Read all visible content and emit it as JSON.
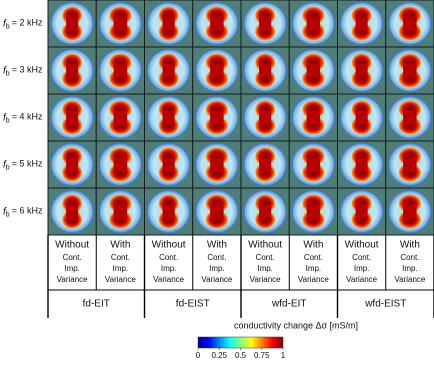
{
  "rows": [
    {
      "symbol": "f",
      "subscript": "b",
      "text": "= 2 kHz"
    },
    {
      "symbol": "f",
      "subscript": "b",
      "text": "= 3 kHz"
    },
    {
      "symbol": "f",
      "subscript": "b",
      "text": "= 4 kHz"
    },
    {
      "symbol": "f",
      "subscript": "b",
      "text": "= 5 kHz"
    },
    {
      "symbol": "f",
      "subscript": "b",
      "text": "= 6 kHz"
    }
  ],
  "columns": [
    {
      "main": "Without",
      "lines": [
        "Cont.",
        "Imp.",
        "Variance"
      ]
    },
    {
      "main": "With",
      "lines": [
        "Cont.",
        "Imp.",
        "Variance"
      ]
    },
    {
      "main": "Without",
      "lines": [
        "Cont.",
        "Imp.",
        "Variance"
      ]
    },
    {
      "main": "With",
      "lines": [
        "Cont.",
        "Imp.",
        "Variance"
      ]
    },
    {
      "main": "Without",
      "lines": [
        "Cont.",
        "Imp.",
        "Variance"
      ]
    },
    {
      "main": "With",
      "lines": [
        "Cont.",
        "Imp.",
        "Variance"
      ]
    },
    {
      "main": "Without",
      "lines": [
        "Cont.",
        "Imp.",
        "Variance"
      ]
    },
    {
      "main": "With",
      "lines": [
        "Cont.",
        "Imp.",
        "Variance"
      ]
    }
  ],
  "groups": [
    "fd-EIT",
    "fd-EIST",
    "wfd-EIT",
    "wfd-EIST"
  ],
  "colorbar": {
    "title": "conductivity change Δσ [mS/m]",
    "range": [
      0,
      1
    ],
    "ticks": [
      0,
      0.25,
      0.5,
      0.75,
      1
    ]
  }
}
